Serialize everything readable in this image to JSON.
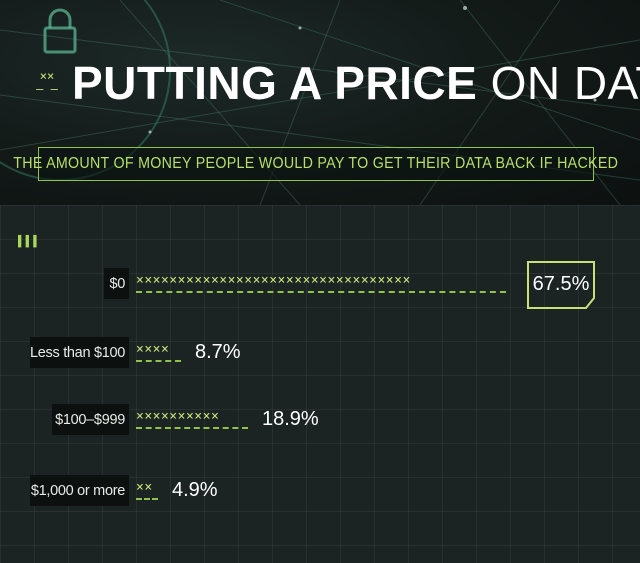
{
  "header": {
    "title_marks_top": "××",
    "title_marks_bottom": "— —",
    "title_bold": "PUTTING A PRICE",
    "title_light": " ON DATA",
    "subtitle": "THE AMOUNT OF MONEY PEOPLE WOULD PAY TO GET THEIR DATA BACK IF HACKED"
  },
  "colors": {
    "accent": "#8fc34a",
    "accent_text": "#c9e07a",
    "background": "#1c2423",
    "label_bg": "#0c1110"
  },
  "icons": {
    "lock": "lock-icon"
  },
  "chart_data": {
    "type": "bar",
    "orientation": "horizontal",
    "categories": [
      "$0",
      "Less than $100",
      "$100–$999",
      "$1,000 or more"
    ],
    "values": [
      67.5,
      8.7,
      18.9,
      4.9
    ],
    "value_labels": [
      "67.5%",
      "8.7%",
      "18.9%",
      "4.9%"
    ],
    "mark_counts": [
      33,
      4,
      10,
      2
    ],
    "unit": "%",
    "title": "PUTTING A PRICE ON DATA",
    "subtitle": "THE AMOUNT OF MONEY PEOPLE WOULD PAY TO GET THEIR DATA BACK IF HACKED",
    "xlim": [
      0,
      67.5
    ],
    "grid": true
  }
}
